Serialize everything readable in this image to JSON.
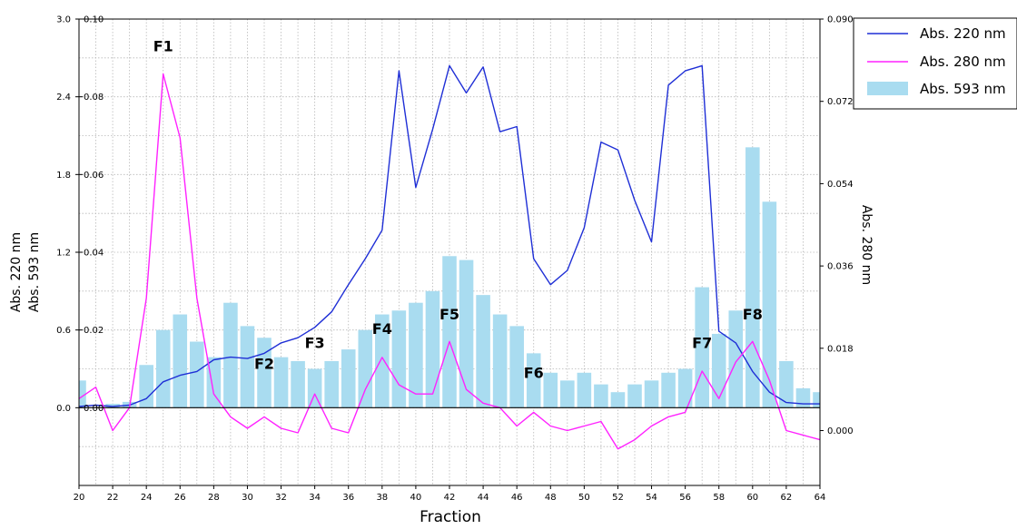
{
  "chart_data": {
    "type": "bar",
    "title": "",
    "xlabel": "Fraction",
    "ylabel_left_outer": "Abs.  220 nm",
    "ylabel_left_inner": "Abs.  593 nm",
    "ylabel_right": "Abs.  280 nm",
    "x_range": [
      20,
      64
    ],
    "x_ticks": [
      "20",
      "22",
      "24",
      "26",
      "28",
      "30",
      "32",
      "34",
      "36",
      "38",
      "40",
      "42",
      "44",
      "46",
      "48",
      "50",
      "52",
      "54",
      "56",
      "58",
      "60",
      "62",
      "64"
    ],
    "y_left_outer": {
      "range": [
        -0.6,
        3.0
      ],
      "ticks": [
        "0.0",
        "0.6",
        "1.2",
        "1.8",
        "2.4",
        "3.0"
      ]
    },
    "y_left_inner": {
      "range": [
        -0.02,
        0.1
      ],
      "ticks": [
        "0.00",
        "0.02",
        "0.04",
        "0.06",
        "0.08",
        "0.10"
      ]
    },
    "y_right": {
      "range": [
        -0.012,
        0.09
      ],
      "ticks": [
        "0.000",
        "0.018",
        "0.036",
        "0.054",
        "0.072",
        "0.090"
      ]
    },
    "grid": true,
    "legend_position": "top-right",
    "series": [
      {
        "name": "Abs. 220 nm",
        "kind": "line",
        "axis": "left_outer",
        "color": "#1f2fd6",
        "x": [
          20,
          21,
          22,
          23,
          24,
          25,
          26,
          27,
          28,
          29,
          30,
          31,
          32,
          33,
          34,
          35,
          36,
          37,
          38,
          39,
          40,
          41,
          42,
          43,
          44,
          45,
          46,
          47,
          48,
          49,
          50,
          51,
          52,
          53,
          54,
          55,
          56,
          57,
          58,
          59,
          60,
          61,
          62,
          63,
          64
        ],
        "values": [
          0.01,
          0.02,
          0.01,
          0.02,
          0.07,
          0.2,
          0.25,
          0.28,
          0.37,
          0.39,
          0.38,
          0.42,
          0.5,
          0.54,
          0.62,
          0.74,
          0.95,
          1.15,
          1.37,
          2.6,
          1.7,
          2.15,
          2.64,
          2.43,
          2.63,
          2.13,
          2.17,
          1.15,
          0.95,
          1.06,
          1.39,
          2.05,
          1.99,
          1.6,
          1.28,
          2.49,
          2.6,
          2.64,
          0.59,
          0.5,
          0.28,
          0.12,
          0.04,
          0.03,
          0.03
        ]
      },
      {
        "name": "Abs. 280 nm",
        "kind": "line",
        "axis": "right",
        "color": "#ff22ff",
        "x": [
          20,
          21,
          22,
          23,
          24,
          25,
          26,
          27,
          28,
          29,
          30,
          31,
          32,
          33,
          34,
          35,
          36,
          37,
          38,
          39,
          40,
          41,
          42,
          43,
          44,
          45,
          46,
          47,
          48,
          49,
          50,
          51,
          52,
          53,
          54,
          55,
          56,
          57,
          58,
          59,
          60,
          61,
          62,
          63,
          64
        ],
        "values": [
          0.007,
          0.0095,
          0.0,
          0.005,
          0.029,
          0.078,
          0.064,
          0.029,
          0.008,
          0.003,
          0.0005,
          0.003,
          0.0005,
          -0.0005,
          0.008,
          0.0005,
          -0.0005,
          0.009,
          0.016,
          0.01,
          0.008,
          0.008,
          0.0195,
          0.009,
          0.006,
          0.005,
          0.001,
          0.004,
          0.001,
          0.0,
          0.001,
          0.002,
          -0.004,
          -0.002,
          0.001,
          0.003,
          0.004,
          0.013,
          0.007,
          0.015,
          0.0195,
          0.011,
          0.0,
          -0.001,
          -0.002
        ]
      },
      {
        "name": "Abs. 593 nm",
        "kind": "bar",
        "axis": "left_inner",
        "color": "#a9dcf0",
        "x": [
          20,
          21,
          22,
          23,
          24,
          25,
          26,
          27,
          28,
          29,
          30,
          31,
          32,
          33,
          34,
          35,
          36,
          37,
          38,
          39,
          40,
          41,
          42,
          43,
          44,
          45,
          46,
          47,
          48,
          49,
          50,
          51,
          52,
          53,
          54,
          55,
          56,
          57,
          58,
          59,
          60,
          61,
          62,
          63,
          64
        ],
        "values": [
          0.007,
          0.0,
          0.001,
          0.0015,
          0.011,
          0.02,
          0.024,
          0.017,
          0.013,
          0.027,
          0.021,
          0.018,
          0.013,
          0.012,
          0.01,
          0.012,
          0.015,
          0.02,
          0.024,
          0.025,
          0.027,
          0.03,
          0.039,
          0.038,
          0.029,
          0.024,
          0.021,
          0.014,
          0.009,
          0.007,
          0.009,
          0.006,
          0.004,
          0.006,
          0.007,
          0.009,
          0.01,
          0.031,
          0.019,
          0.025,
          0.067,
          0.053,
          0.012,
          0.005,
          0.004
        ]
      }
    ],
    "annotations": [
      {
        "text": "F1",
        "x": 25,
        "y_left_outer": 2.75
      },
      {
        "text": "F2",
        "x": 31,
        "y_left_outer": 0.3
      },
      {
        "text": "F3",
        "x": 34,
        "y_left_outer": 0.46
      },
      {
        "text": "F4",
        "x": 38,
        "y_left_outer": 0.57
      },
      {
        "text": "F5",
        "x": 42,
        "y_left_outer": 0.68
      },
      {
        "text": "F6",
        "x": 47,
        "y_left_outer": 0.23
      },
      {
        "text": "F7",
        "x": 57,
        "y_left_outer": 0.46
      },
      {
        "text": "F8",
        "x": 60,
        "y_left_outer": 0.68
      }
    ]
  }
}
